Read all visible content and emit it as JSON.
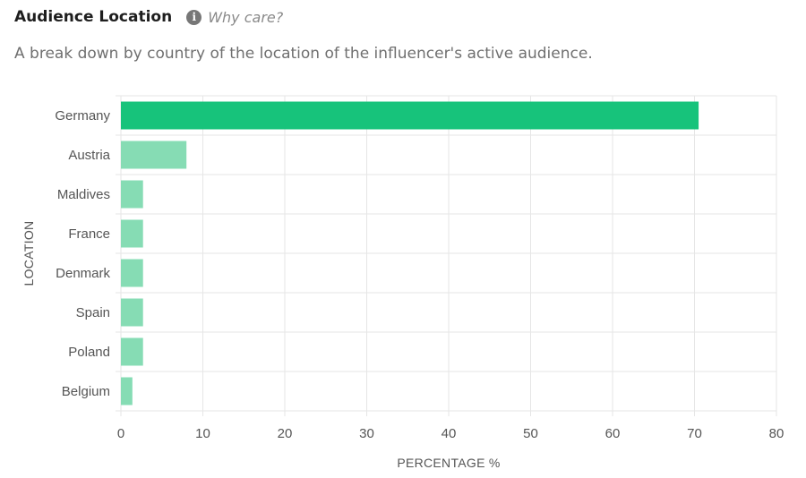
{
  "header": {
    "title": "Audience Location",
    "info_icon": "info-circle-icon",
    "why_care": "Why care?"
  },
  "subtitle": "A break down by country of the location of the influencer's active audience.",
  "chart_data": {
    "type": "bar",
    "orientation": "horizontal",
    "categories": [
      "Germany",
      "Austria",
      "Maldives",
      "France",
      "Denmark",
      "Spain",
      "Poland",
      "Belgium"
    ],
    "values": [
      70.5,
      8.0,
      2.7,
      2.7,
      2.7,
      2.7,
      2.7,
      1.4
    ],
    "xlabel": "PERCENTAGE %",
    "ylabel": "LOCATION",
    "xlim": [
      0,
      80
    ],
    "xticks": [
      0,
      10,
      20,
      30,
      40,
      50,
      60,
      70,
      80
    ],
    "grid": true,
    "colors": {
      "highlight": "#17c37b",
      "default": "#86dcb4",
      "grid": "#e6e6e6"
    }
  }
}
